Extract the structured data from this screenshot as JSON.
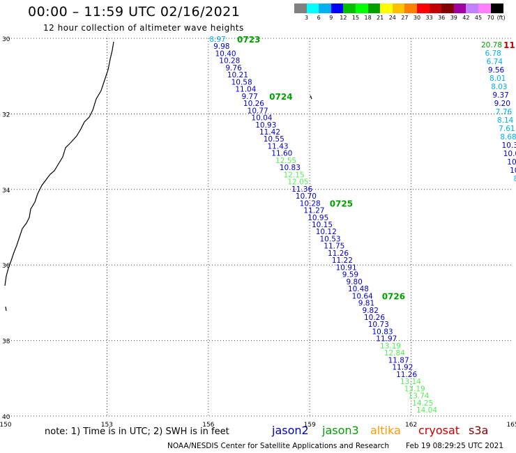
{
  "header": {
    "title": "00:00 – 11:59 UTC 02/16/2021",
    "subtitle": "12 hour collection of altimeter wave heights"
  },
  "colorbar": {
    "labels": [
      "3",
      "6",
      "9",
      "12",
      "15",
      "18",
      "21",
      "24",
      "27",
      "30",
      "33",
      "36",
      "39",
      "42",
      "45",
      "70"
    ],
    "unit": "(ft)",
    "colors": [
      "#808080",
      "#00ffff",
      "#00b0f0",
      "#0000ff",
      "#00c000",
      "#00ff00",
      "#00a000",
      "#ffff00",
      "#ffc000",
      "#ff8000",
      "#ff0000",
      "#c00000",
      "#800000",
      "#a000a0",
      "#c080ff",
      "#ff80ff",
      "#000000"
    ]
  },
  "axes": {
    "lat_labels": [
      "30",
      "32",
      "34",
      "36",
      "38",
      "40"
    ],
    "lon_labels": [
      "150",
      "153",
      "156",
      "159",
      "162",
      "165"
    ]
  },
  "tracks": {
    "main": {
      "times": [
        {
          "label": "0723",
          "index": 0
        },
        {
          "label": "0724",
          "index": 8
        },
        {
          "label": "0725",
          "index": 23
        },
        {
          "label": "0726",
          "index": 36
        }
      ],
      "points": [
        {
          "v": "8.97",
          "c": "#00b0f0"
        },
        {
          "v": "9.98",
          "c": "#0000cc"
        },
        {
          "v": "10.40",
          "c": "#0000cc"
        },
        {
          "v": "10.28",
          "c": "#0000cc"
        },
        {
          "v": "9.76",
          "c": "#0000cc"
        },
        {
          "v": "10.21",
          "c": "#0000cc"
        },
        {
          "v": "10.58",
          "c": "#0000cc"
        },
        {
          "v": "11.04",
          "c": "#0000cc"
        },
        {
          "v": "9.77",
          "c": "#0000cc"
        },
        {
          "v": "10.26",
          "c": "#0000cc"
        },
        {
          "v": "10.77",
          "c": "#0000cc"
        },
        {
          "v": "10.04",
          "c": "#0000cc"
        },
        {
          "v": "10.93",
          "c": "#0000cc"
        },
        {
          "v": "11.42",
          "c": "#0000cc"
        },
        {
          "v": "10.55",
          "c": "#0000cc"
        },
        {
          "v": "11.43",
          "c": "#0000cc"
        },
        {
          "v": "11.60",
          "c": "#0000cc"
        },
        {
          "v": "12.55",
          "c": "#55ee55"
        },
        {
          "v": "10.83",
          "c": "#0000cc"
        },
        {
          "v": "12.15",
          "c": "#55ee55"
        },
        {
          "v": "12.05",
          "c": "#55ee55"
        },
        {
          "v": "11.36",
          "c": "#0000cc"
        },
        {
          "v": "10.70",
          "c": "#0000cc"
        },
        {
          "v": "10.28",
          "c": "#0000cc"
        },
        {
          "v": "11.27",
          "c": "#0000cc"
        },
        {
          "v": "10.95",
          "c": "#0000cc"
        },
        {
          "v": "10.15",
          "c": "#0000cc"
        },
        {
          "v": "10.12",
          "c": "#0000cc"
        },
        {
          "v": "10.53",
          "c": "#0000cc"
        },
        {
          "v": "11.75",
          "c": "#0000cc"
        },
        {
          "v": "11.26",
          "c": "#0000cc"
        },
        {
          "v": "11.22",
          "c": "#0000cc"
        },
        {
          "v": "10.91",
          "c": "#0000cc"
        },
        {
          "v": "9.59",
          "c": "#0000cc"
        },
        {
          "v": "9.80",
          "c": "#0000cc"
        },
        {
          "v": "10.48",
          "c": "#0000cc"
        },
        {
          "v": "10.64",
          "c": "#0000cc"
        },
        {
          "v": "9.81",
          "c": "#0000cc"
        },
        {
          "v": "9.82",
          "c": "#0000cc"
        },
        {
          "v": "10.26",
          "c": "#0000cc"
        },
        {
          "v": "10.73",
          "c": "#0000cc"
        },
        {
          "v": "10.83",
          "c": "#0000cc"
        },
        {
          "v": "11.97",
          "c": "#0000cc"
        },
        {
          "v": "13.19",
          "c": "#55ee55"
        },
        {
          "v": "12.84",
          "c": "#55ee55"
        },
        {
          "v": "11.87",
          "c": "#0000cc"
        },
        {
          "v": "11.92",
          "c": "#0000cc"
        },
        {
          "v": "11.26",
          "c": "#0000cc"
        },
        {
          "v": "13.14",
          "c": "#55ee55"
        },
        {
          "v": "13.19",
          "c": "#55ee55"
        },
        {
          "v": "13.74",
          "c": "#55ee55"
        },
        {
          "v": "14.25",
          "c": "#55ee55"
        },
        {
          "v": "14.04",
          "c": "#55ee55"
        }
      ]
    },
    "right": {
      "time_label": "11",
      "time_color": "#c00000",
      "points": [
        {
          "v": "20.78",
          "c": "#00a000"
        },
        {
          "v": "6.78",
          "c": "#00b0f0"
        },
        {
          "v": "6.74",
          "c": "#00b0f0"
        },
        {
          "v": "9.56",
          "c": "#0000cc"
        },
        {
          "v": "8.01",
          "c": "#00b0f0"
        },
        {
          "v": "8.03",
          "c": "#00b0f0"
        },
        {
          "v": "9.37",
          "c": "#0000cc"
        },
        {
          "v": "9.20",
          "c": "#0000cc"
        },
        {
          "v": "7.76",
          "c": "#00b0f0"
        },
        {
          "v": "8.14",
          "c": "#00b0f0"
        },
        {
          "v": "7.61",
          "c": "#00b0f0"
        },
        {
          "v": "8.68",
          "c": "#00b0f0"
        },
        {
          "v": "10.3",
          "c": "#0000cc"
        },
        {
          "v": "10.0",
          "c": "#0000cc"
        },
        {
          "v": "10.",
          "c": "#0000cc"
        },
        {
          "v": "10",
          "c": "#0000cc"
        },
        {
          "v": "8",
          "c": "#00b0f0"
        }
      ]
    }
  },
  "footer": {
    "note": "note:  1) Time is in UTC; 2) SWH is in feet",
    "satellites": [
      {
        "name": "jason2",
        "color": "#0000cc"
      },
      {
        "name": "jason3",
        "color": "#00a000"
      },
      {
        "name": "altika",
        "color": "#ff9900"
      },
      {
        "name": "cryosat",
        "color": "#cc0000"
      },
      {
        "name": "s3a",
        "color": "#800000"
      }
    ],
    "credit": "NOAA/NESDIS Center for Satellite Applications and Research",
    "timestamp": "Feb 19 08:29:25 UTC 2021"
  }
}
